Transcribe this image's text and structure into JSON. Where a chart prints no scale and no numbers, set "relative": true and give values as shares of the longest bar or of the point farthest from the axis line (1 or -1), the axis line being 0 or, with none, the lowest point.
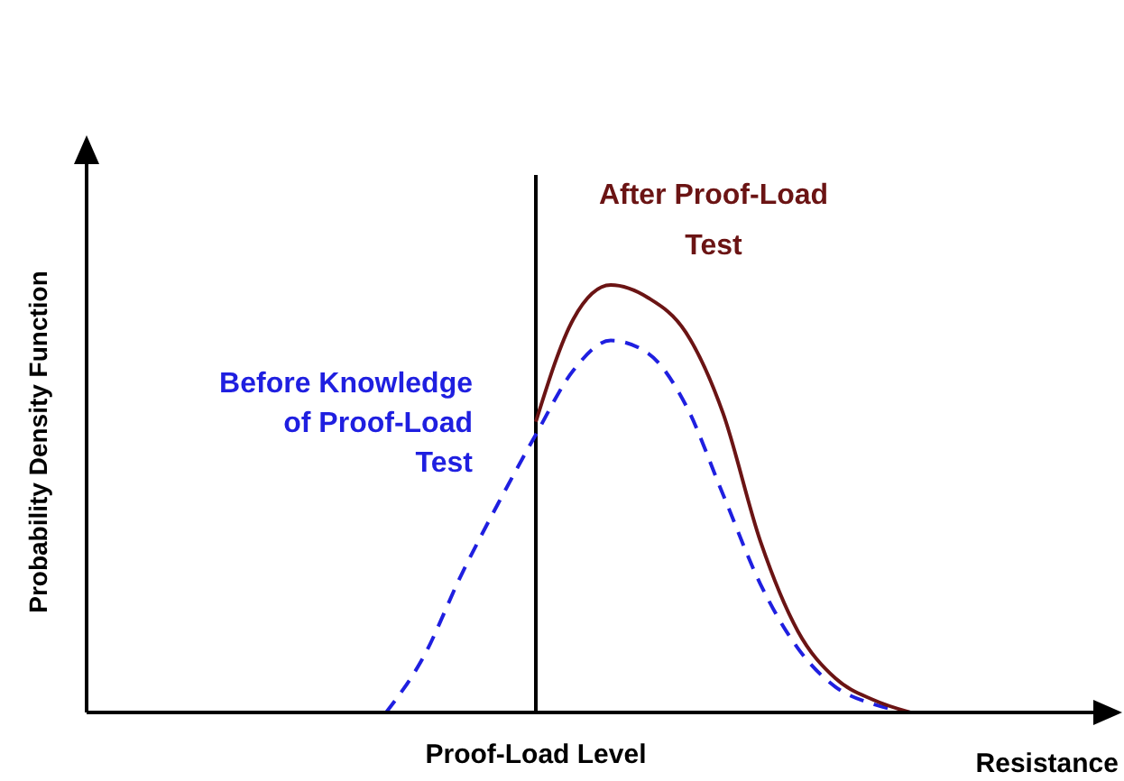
{
  "chart_data": {
    "type": "line",
    "relative": true,
    "xlabel": "Resistance",
    "ylabel": "Probability Density Function",
    "categories": [
      null,
      null,
      null,
      null,
      null,
      null,
      null,
      null,
      null,
      null,
      null,
      null,
      null,
      null,
      null,
      null,
      null,
      null,
      null,
      null,
      null,
      null,
      null,
      null,
      null,
      null,
      null,
      null,
      null
    ],
    "series": [
      {
        "name": "Before Knowledge of Proof-Load Test",
        "color": "#1f1fe0",
        "line_style": "dashed",
        "values": [
          null,
          null,
          null,
          null,
          null,
          null,
          null,
          null,
          0,
          0.13,
          0.32,
          0.49,
          0.65,
          0.8,
          0.87,
          0.84,
          0.72,
          0.51,
          0.3,
          0.15,
          0.06,
          0.02,
          0,
          null,
          null,
          null,
          null,
          null,
          null
        ]
      },
      {
        "name": "After Proof-Load Test",
        "color": "#6b1414",
        "line_style": "solid",
        "values": [
          null,
          null,
          null,
          null,
          null,
          null,
          null,
          null,
          null,
          null,
          null,
          null,
          0.68,
          0.92,
          1,
          0.97,
          0.89,
          0.7,
          0.4,
          0.19,
          0.08,
          0.03,
          0,
          null,
          null,
          null,
          null,
          null,
          null
        ]
      }
    ],
    "annotations": [
      "Proof-Load Level"
    ]
  }
}
